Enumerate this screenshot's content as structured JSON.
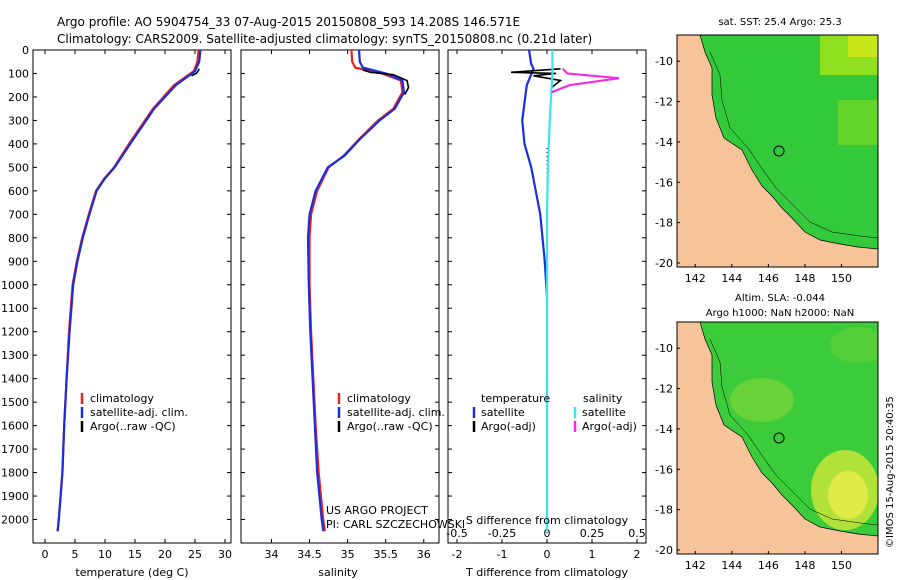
{
  "header": {
    "line1": "Argo profile: AO 5904754_33 07-Aug-2015 20150808_593 14.208S 146.571E",
    "line2": "Climatology: CARS2009. Satellite-adjusted climatology: synTS_20150808.nc (0.21d later)"
  },
  "colors": {
    "climatology": "#e8231c",
    "satellite": "#1a2de0",
    "argo": "#000000",
    "sal_satellite": "#39e5ef",
    "sal_argo": "#ef2fe8",
    "land": "#f7c49a"
  },
  "chart_data": [
    {
      "type": "line",
      "panel": "temperature",
      "xlabel": "temperature (deg C)",
      "xlim": [
        -2,
        31
      ],
      "xticks": [
        0,
        5,
        10,
        15,
        20,
        25,
        30
      ],
      "ylim": [
        2100,
        0
      ],
      "yticks": [
        0,
        100,
        200,
        300,
        400,
        500,
        600,
        700,
        800,
        900,
        1000,
        1100,
        1200,
        1300,
        1400,
        1500,
        1600,
        1700,
        1800,
        1900,
        2000
      ],
      "legend": [
        "climatology",
        "satellite-adj. clim.",
        "Argo(..raw -QC)"
      ],
      "series": [
        {
          "name": "climatology",
          "color": "climatology",
          "x": [
            25.6,
            25.4,
            24.8,
            21.5,
            18.0,
            14.0,
            11.5,
            9.8,
            8.5,
            7.3,
            6.2,
            5.3,
            4.6,
            4.0,
            3.6,
            3.2,
            2.9,
            2.6,
            2.3,
            2.1
          ],
          "y": [
            0,
            50,
            90,
            150,
            250,
            400,
            500,
            550,
            600,
            700,
            800,
            900,
            1000,
            1200,
            1400,
            1600,
            1800,
            1900,
            2000,
            2050
          ]
        },
        {
          "name": "satellite-adj. clim.",
          "color": "satellite",
          "x": [
            25.9,
            25.7,
            25.0,
            21.8,
            18.2,
            14.2,
            11.6,
            9.9,
            8.6,
            7.4,
            6.3,
            5.4,
            4.7,
            4.1,
            3.6,
            3.2,
            2.9,
            2.6,
            2.3,
            2.1
          ],
          "y": [
            0,
            50,
            90,
            150,
            250,
            400,
            500,
            550,
            600,
            700,
            800,
            900,
            1000,
            1200,
            1400,
            1600,
            1800,
            1900,
            2000,
            2050
          ]
        },
        {
          "name": "Argo(..raw -QC)",
          "color": "argo",
          "x": [
            25.7,
            25.5,
            25.2,
            24.4
          ],
          "y": [
            80,
            90,
            100,
            110
          ]
        }
      ]
    },
    {
      "type": "line",
      "panel": "salinity",
      "xlabel": "salinity",
      "xlim": [
        33.6,
        36.2
      ],
      "xticks": [
        34,
        34.5,
        35,
        35.5,
        36
      ],
      "ylim": [
        2100,
        0
      ],
      "legend": [
        "climatology",
        "satellite-adj. clim.",
        "Argo(..raw -QC)"
      ],
      "annotations": [
        "US ARGO PROJECT",
        "PI: CARL SZCZECHOWSKI"
      ],
      "series": [
        {
          "name": "climatology",
          "color": "climatology",
          "x": [
            35.05,
            35.06,
            35.1,
            35.45,
            35.7,
            35.72,
            35.6,
            35.4,
            35.15,
            34.95,
            34.75,
            34.6,
            34.52,
            34.5,
            34.5,
            34.52,
            34.55,
            34.58,
            34.62,
            34.65,
            34.68,
            34.7
          ],
          "y": [
            0,
            50,
            75,
            100,
            130,
            180,
            250,
            300,
            380,
            450,
            500,
            600,
            700,
            800,
            1000,
            1200,
            1400,
            1600,
            1800,
            1900,
            2000,
            2050
          ]
        },
        {
          "name": "satellite-adj. clim.",
          "color": "satellite",
          "x": [
            35.15,
            35.16,
            35.2,
            35.5,
            35.72,
            35.74,
            35.62,
            35.42,
            35.16,
            34.96,
            34.74,
            34.58,
            34.5,
            34.48,
            34.49,
            34.51,
            34.54,
            34.57,
            34.6,
            34.63,
            34.66,
            34.68
          ],
          "y": [
            0,
            50,
            75,
            100,
            130,
            180,
            250,
            300,
            380,
            450,
            500,
            600,
            700,
            800,
            1000,
            1200,
            1400,
            1600,
            1800,
            1900,
            2000,
            2050
          ]
        },
        {
          "name": "Argo(..raw -QC)",
          "color": "argo",
          "x": [
            35.2,
            35.3,
            35.6,
            35.78,
            35.8,
            35.75
          ],
          "y": [
            85,
            95,
            105,
            130,
            160,
            190
          ]
        }
      ]
    },
    {
      "type": "line",
      "panel": "difference",
      "xlabel": "T difference from climatology",
      "xlabel_top": "S difference from climatology",
      "xlim": [
        -2.2,
        2.2
      ],
      "xticks": [
        -2,
        -1,
        0,
        1,
        2
      ],
      "xticks_s": [
        -0.5,
        -0.25,
        0,
        0.25,
        0.5
      ],
      "ylim": [
        2100,
        0
      ],
      "legend_headers": [
        "temperature",
        "salinity"
      ],
      "legend": [
        "satellite",
        "Argo(-adj)",
        "satellite",
        "Argo(-adj)"
      ],
      "series": [
        {
          "name": "satellite",
          "color": "satellite",
          "x": [
            -0.4,
            -0.35,
            -0.3,
            -0.45,
            -0.55,
            -0.5,
            -0.35,
            -0.15,
            -0.1,
            -0.05,
            0.0
          ],
          "y": [
            0,
            60,
            80,
            150,
            300,
            400,
            500,
            700,
            800,
            900,
            1050
          ]
        },
        {
          "name": "Argo(-adj)",
          "color": "argo",
          "x": [
            0.3,
            -0.8,
            0.2,
            -0.3,
            0.3,
            0.1
          ],
          "y": [
            80,
            95,
            100,
            110,
            130,
            160
          ]
        },
        {
          "name": "satellite",
          "color": "sal_satellite",
          "x": [
            0.12,
            0.12,
            0.06,
            0.02,
            0.0,
            0.0,
            0.0,
            0.0
          ],
          "y": [
            0,
            100,
            300,
            500,
            700,
            1000,
            1500,
            2050
          ]
        },
        {
          "name": "Argo(-adj)",
          "color": "sal_argo",
          "x": [
            0.35,
            0.45,
            1.6,
            0.5,
            0.1
          ],
          "y": [
            80,
            100,
            120,
            150,
            180
          ]
        }
      ]
    },
    {
      "type": "heatmap",
      "panel": "map-sst",
      "title": "sat. SST: 25.4 Argo: 25.3",
      "xticks": [
        142,
        144,
        146,
        148,
        150
      ],
      "yticks": [
        -10,
        -12,
        -14,
        -16,
        -18,
        -20
      ],
      "xlim": [
        141,
        152
      ],
      "ylim": [
        -20.2,
        -8.7
      ],
      "marker": {
        "lon": 146.571,
        "lat": -14.208
      }
    },
    {
      "type": "heatmap",
      "panel": "map-sla",
      "title": "Altim. SLA: -0.044",
      "subtitle": "Argo h1000: NaN h2000: NaN",
      "xticks": [
        142,
        144,
        146,
        148,
        150
      ],
      "yticks": [
        -10,
        -12,
        -14,
        -16,
        -18,
        -20
      ],
      "xlim": [
        141,
        152
      ],
      "ylim": [
        -20.2,
        -8.7
      ],
      "marker": {
        "lon": 146.571,
        "lat": -14.208
      }
    }
  ],
  "footer_stamp": "©IMOS 15-Aug-2015 20:40:35"
}
